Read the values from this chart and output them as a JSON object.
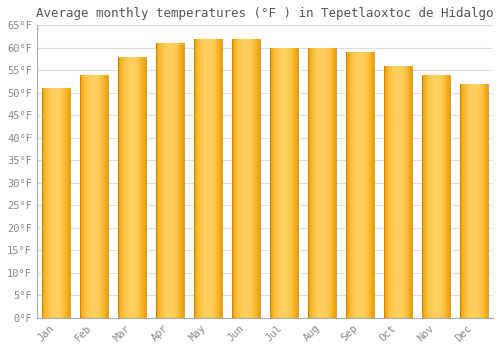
{
  "title": "Average monthly temperatures (°F ) in Tepetlaoxtoc de Hidalgo",
  "months": [
    "Jan",
    "Feb",
    "Mar",
    "Apr",
    "May",
    "Jun",
    "Jul",
    "Aug",
    "Sep",
    "Oct",
    "Nov",
    "Dec"
  ],
  "values": [
    51,
    54,
    58,
    61,
    62,
    62,
    60,
    60,
    59,
    56,
    54,
    52
  ],
  "bar_color_left": "#F0A000",
  "bar_color_center": "#FFD060",
  "bar_color_right": "#F0A000",
  "background_color": "#FFFFFF",
  "grid_color": "#DDDDDD",
  "text_color": "#888888",
  "title_color": "#555555",
  "ylim": [
    0,
    65
  ],
  "yticks": [
    0,
    5,
    10,
    15,
    20,
    25,
    30,
    35,
    40,
    45,
    50,
    55,
    60,
    65
  ],
  "ytick_labels": [
    "0°F",
    "5°F",
    "10°F",
    "15°F",
    "20°F",
    "25°F",
    "30°F",
    "35°F",
    "40°F",
    "45°F",
    "50°F",
    "55°F",
    "60°F",
    "65°F"
  ],
  "tick_font_size": 7.5,
  "title_font_size": 9,
  "xlabel_rotation": 45,
  "font_family": "monospace",
  "bar_width": 0.75
}
